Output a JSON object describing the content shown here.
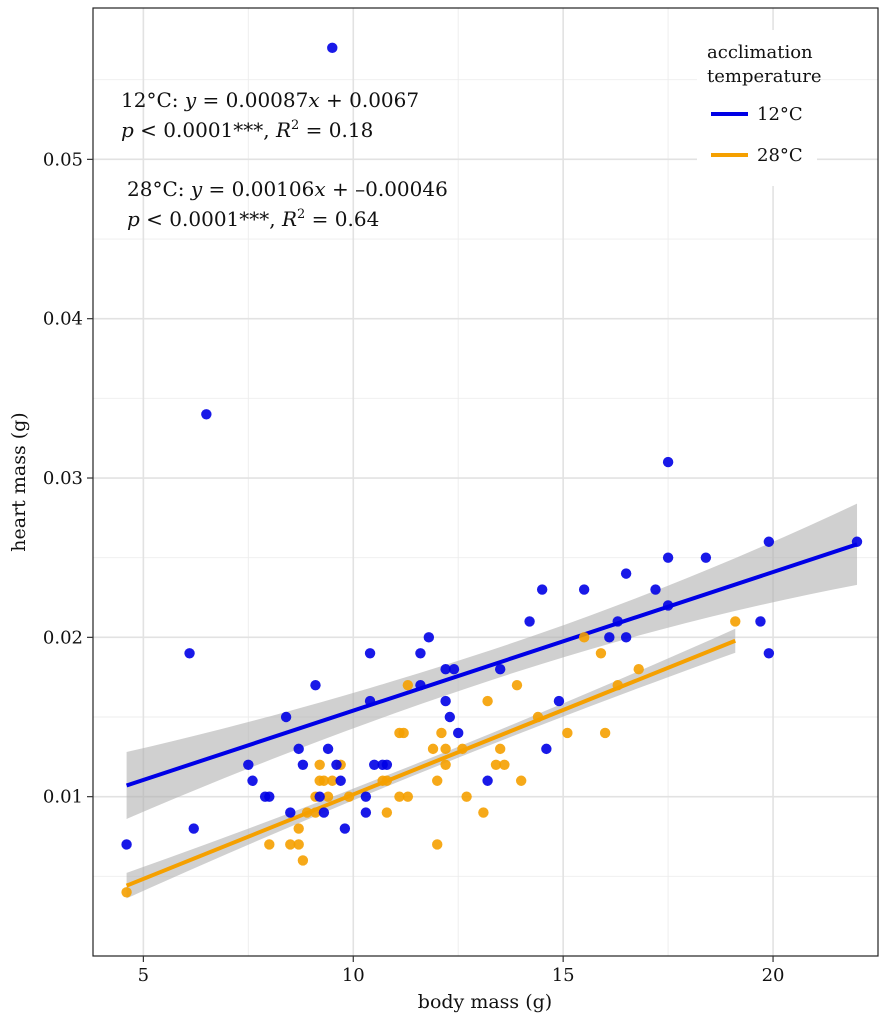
{
  "chart_data": {
    "type": "scatter",
    "xlabel": "body mass (g)",
    "ylabel": "heart mass (g)",
    "xlim": [
      3.8,
      22.5
    ],
    "ylim": [
      0.0,
      0.0595
    ],
    "x_ticks": [
      5,
      10,
      15,
      20
    ],
    "x_tick_labels": [
      "5",
      "10",
      "15",
      "20"
    ],
    "y_ticks": [
      0.01,
      0.02,
      0.03,
      0.04,
      0.05
    ],
    "y_tick_labels": [
      "0.01",
      "0.02",
      "0.03",
      "0.04",
      "0.05"
    ],
    "grid": true,
    "legend": {
      "title_line1": "acclimation",
      "title_line2": "temperature",
      "placement": "top-right",
      "entries": [
        "12°C",
        "28°C"
      ]
    },
    "annotations": {
      "a12": {
        "label": "12°C: ",
        "yvar": "y",
        "eq": " = 0.00087",
        "xvar": "x",
        "eq_tail": " + 0.0067",
        "pvar": "p",
        "ptail": " < 0.0001***, ",
        "rvar": "R",
        "rexp": "2",
        "rtail": " = 0.18"
      },
      "a28": {
        "label": "28°C: ",
        "yvar": "y",
        "eq": " = 0.00106",
        "xvar": "x",
        "eq_tail": " + –0.00046",
        "pvar": "p",
        "ptail": " < 0.0001***, ",
        "rvar": "R",
        "rexp": "2",
        "rtail": " = 0.64"
      }
    },
    "series": [
      {
        "name": "12°C",
        "color": "#0000e6",
        "fit": {
          "slope": 0.00087,
          "intercept": 0.0067,
          "x_range": [
            4.6,
            22.0
          ],
          "ci_left": [
            0.0086,
            0.0128
          ],
          "ci_right": [
            0.0232,
            0.0283
          ]
        },
        "points": [
          [
            4.6,
            0.007
          ],
          [
            6.1,
            0.019
          ],
          [
            6.2,
            0.008
          ],
          [
            6.5,
            0.034
          ],
          [
            7.5,
            0.012
          ],
          [
            7.6,
            0.011
          ],
          [
            7.9,
            0.01
          ],
          [
            8.0,
            0.01
          ],
          [
            8.4,
            0.015
          ],
          [
            8.5,
            0.009
          ],
          [
            8.7,
            0.013
          ],
          [
            8.8,
            0.012
          ],
          [
            9.1,
            0.017
          ],
          [
            9.2,
            0.01
          ],
          [
            9.3,
            0.009
          ],
          [
            9.4,
            0.013
          ],
          [
            9.5,
            0.057
          ],
          [
            9.6,
            0.012
          ],
          [
            9.7,
            0.011
          ],
          [
            9.8,
            0.008
          ],
          [
            10.3,
            0.01
          ],
          [
            10.3,
            0.009
          ],
          [
            10.4,
            0.019
          ],
          [
            10.4,
            0.016
          ],
          [
            10.5,
            0.012
          ],
          [
            10.7,
            0.012
          ],
          [
            10.8,
            0.012
          ],
          [
            11.6,
            0.019
          ],
          [
            11.6,
            0.017
          ],
          [
            11.8,
            0.02
          ],
          [
            12.2,
            0.018
          ],
          [
            12.2,
            0.016
          ],
          [
            12.3,
            0.015
          ],
          [
            12.4,
            0.018
          ],
          [
            12.5,
            0.014
          ],
          [
            13.2,
            0.011
          ],
          [
            13.5,
            0.018
          ],
          [
            14.2,
            0.021
          ],
          [
            14.5,
            0.023
          ],
          [
            14.6,
            0.013
          ],
          [
            14.9,
            0.016
          ],
          [
            15.5,
            0.023
          ],
          [
            16.1,
            0.02
          ],
          [
            16.3,
            0.021
          ],
          [
            16.5,
            0.024
          ],
          [
            16.5,
            0.02
          ],
          [
            17.2,
            0.023
          ],
          [
            17.5,
            0.031
          ],
          [
            17.5,
            0.025
          ],
          [
            17.5,
            0.022
          ],
          [
            18.4,
            0.025
          ],
          [
            19.7,
            0.021
          ],
          [
            19.9,
            0.026
          ],
          [
            19.9,
            0.019
          ],
          [
            22.0,
            0.026
          ]
        ]
      },
      {
        "name": "28°C",
        "color": "#f5a000",
        "fit": {
          "slope": 0.00106,
          "intercept": -0.00046,
          "x_range": [
            4.6,
            19.1
          ],
          "ci_left": [
            0.0037,
            0.0053
          ],
          "ci_right": [
            0.019,
            0.0205
          ]
        },
        "points": [
          [
            4.6,
            0.004
          ],
          [
            8.0,
            0.007
          ],
          [
            8.5,
            0.007
          ],
          [
            8.7,
            0.007
          ],
          [
            8.7,
            0.008
          ],
          [
            8.8,
            0.006
          ],
          [
            8.9,
            0.009
          ],
          [
            9.1,
            0.01
          ],
          [
            9.1,
            0.009
          ],
          [
            9.2,
            0.012
          ],
          [
            9.2,
            0.011
          ],
          [
            9.3,
            0.011
          ],
          [
            9.4,
            0.01
          ],
          [
            9.5,
            0.011
          ],
          [
            9.7,
            0.012
          ],
          [
            9.9,
            0.01
          ],
          [
            10.7,
            0.011
          ],
          [
            10.8,
            0.009
          ],
          [
            10.8,
            0.011
          ],
          [
            11.1,
            0.014
          ],
          [
            11.1,
            0.01
          ],
          [
            11.2,
            0.014
          ],
          [
            11.3,
            0.01
          ],
          [
            11.3,
            0.017
          ],
          [
            11.9,
            0.013
          ],
          [
            12.0,
            0.007
          ],
          [
            12.0,
            0.011
          ],
          [
            12.1,
            0.014
          ],
          [
            12.2,
            0.012
          ],
          [
            12.2,
            0.013
          ],
          [
            12.6,
            0.013
          ],
          [
            12.7,
            0.01
          ],
          [
            13.1,
            0.009
          ],
          [
            13.2,
            0.016
          ],
          [
            13.4,
            0.012
          ],
          [
            13.5,
            0.013
          ],
          [
            13.6,
            0.012
          ],
          [
            13.9,
            0.017
          ],
          [
            14.0,
            0.011
          ],
          [
            14.4,
            0.015
          ],
          [
            15.1,
            0.014
          ],
          [
            15.5,
            0.02
          ],
          [
            15.9,
            0.019
          ],
          [
            16.0,
            0.014
          ],
          [
            16.3,
            0.017
          ],
          [
            16.8,
            0.018
          ],
          [
            19.1,
            0.021
          ]
        ]
      }
    ]
  }
}
